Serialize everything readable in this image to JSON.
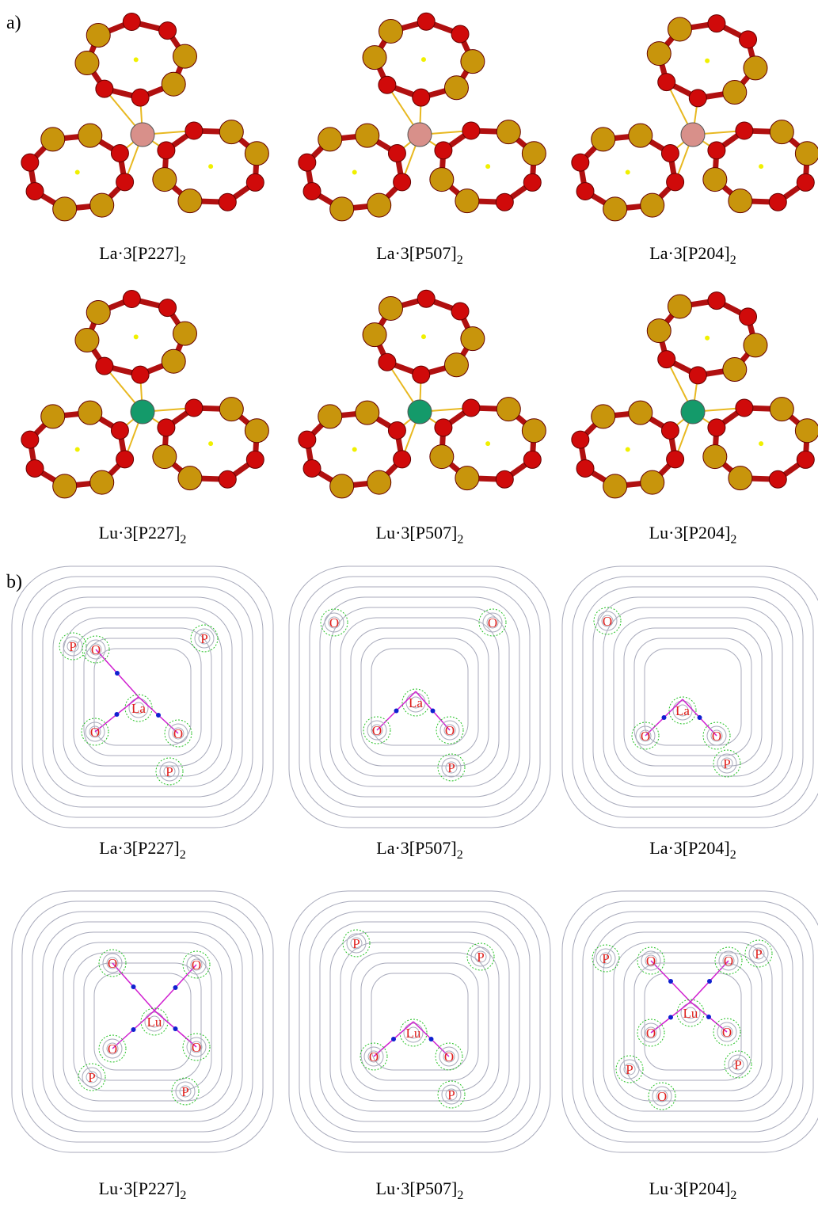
{
  "section_a": {
    "label": "a)",
    "panels": [
      {
        "caption": "La·3[P227]",
        "subscript": "2"
      },
      {
        "caption": "La·3[P507]",
        "subscript": "2"
      },
      {
        "caption": "La·3[P204]",
        "subscript": "2"
      },
      {
        "caption": "Lu·3[P227]",
        "subscript": "2"
      },
      {
        "caption": "Lu·3[P507]",
        "subscript": "2"
      },
      {
        "caption": "Lu·3[P204]",
        "subscript": "2"
      }
    ]
  },
  "section_b": {
    "label": "b)",
    "panels": [
      {
        "caption": "La·3[P227]",
        "subscript": "2",
        "atoms": [
          "P",
          "O",
          "P",
          "La",
          "O",
          "O",
          "P"
        ]
      },
      {
        "caption": "La·3[P507]",
        "subscript": "2",
        "atoms": [
          "O",
          "O",
          "La",
          "O",
          "O",
          "P"
        ]
      },
      {
        "caption": "La·3[P204]",
        "subscript": "2",
        "atoms": [
          "O",
          "La",
          "O",
          "O",
          "P"
        ]
      },
      {
        "caption": "Lu·3[P227]",
        "subscript": "2",
        "atoms": [
          "O",
          "O",
          "Lu",
          "O",
          "O",
          "P",
          "P"
        ]
      },
      {
        "caption": "Lu·3[P507]",
        "subscript": "2",
        "atoms": [
          "P",
          "P",
          "Lu",
          "O",
          "O",
          "P"
        ]
      },
      {
        "caption": "Lu·3[P204]",
        "subscript": "2",
        "atoms": [
          "P",
          "O",
          "O",
          "P",
          "Lu",
          "O",
          "O",
          "P",
          "P",
          "O"
        ]
      }
    ]
  }
}
